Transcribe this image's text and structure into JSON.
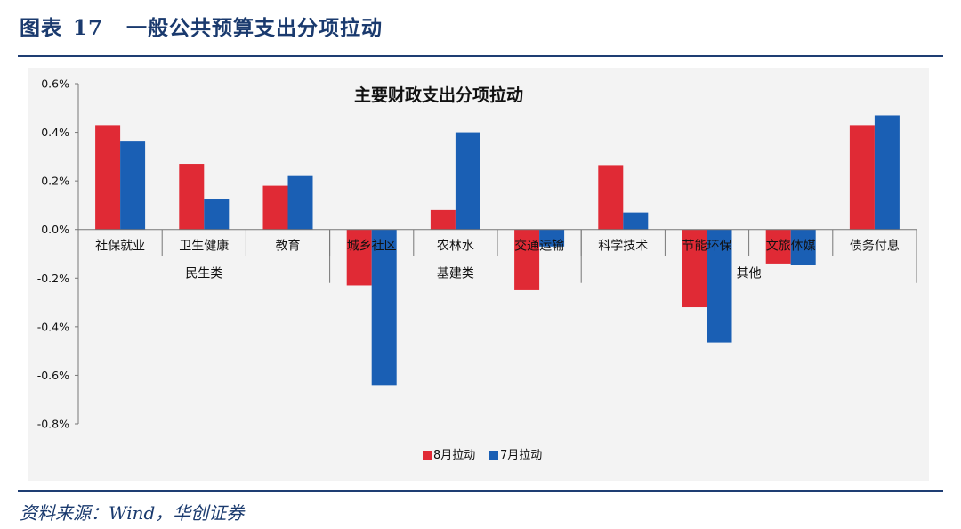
{
  "figure": {
    "label": "图表",
    "number": "17",
    "caption": "一般公共预算支出分项拉动",
    "source": "资料来源：Wind，华创证券"
  },
  "colors": {
    "aug": "#e02a35",
    "jul": "#1a5fb4",
    "title": "#1a3a6e"
  },
  "chart_data": {
    "type": "bar",
    "title": "主要财政支出分项拉动",
    "categories": [
      "社保就业",
      "卫生健康",
      "教育",
      "城乡社区",
      "农林水",
      "交通运输",
      "科学技术",
      "节能环保",
      "文旅体媒",
      "债务付息"
    ],
    "groups": [
      {
        "label": "民生类",
        "members": [
          "社保就业",
          "卫生健康",
          "教育"
        ]
      },
      {
        "label": "基建类",
        "members": [
          "城乡社区",
          "农林水",
          "交通运输"
        ]
      },
      {
        "label": "其他",
        "members": [
          "科学技术",
          "节能环保",
          "文旅体媒",
          "债务付息"
        ]
      }
    ],
    "series": [
      {
        "name": "8月拉动",
        "values": [
          0.43,
          0.27,
          0.18,
          -0.23,
          0.08,
          -0.25,
          0.265,
          -0.32,
          -0.14,
          0.43
        ]
      },
      {
        "name": "7月拉动",
        "values": [
          0.365,
          0.125,
          0.22,
          -0.64,
          0.4,
          -0.07,
          0.07,
          -0.465,
          -0.145,
          0.47
        ]
      }
    ],
    "ylim": [
      -0.8,
      0.6
    ],
    "yticks": [
      "0.6%",
      "0.4%",
      "0.2%",
      "0.0%",
      "-0.2%",
      "-0.4%",
      "-0.6%",
      "-0.8%"
    ],
    "grid": false,
    "legend_position": "bottom-center"
  }
}
